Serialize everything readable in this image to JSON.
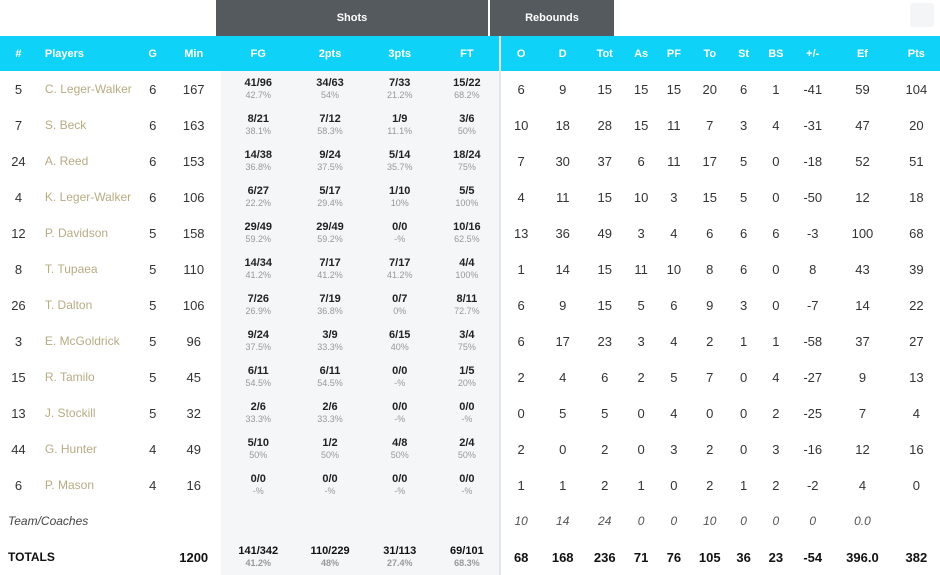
{
  "banners": {
    "shots": "Shots",
    "rebounds": "Rebounds"
  },
  "columns": [
    "#",
    "Players",
    "G",
    "Min",
    "FG",
    "2pts",
    "3pts",
    "FT",
    "O",
    "D",
    "Tot",
    "As",
    "PF",
    "To",
    "St",
    "BS",
    "+/-",
    "Ef",
    "Pts"
  ],
  "players": [
    {
      "num": "5",
      "name": "C. Leger-Walker",
      "g": "6",
      "min": "167",
      "fg": "41/96",
      "fg_pct": "42.7%",
      "p2": "34/63",
      "p2_pct": "54%",
      "p3": "7/33",
      "p3_pct": "21.2%",
      "ft": "15/22",
      "ft_pct": "68.2%",
      "o": "6",
      "d": "9",
      "tot": "15",
      "as": "15",
      "pf": "15",
      "to": "20",
      "st": "6",
      "bs": "1",
      "pm": "-41",
      "ef": "59",
      "pts": "104"
    },
    {
      "num": "7",
      "name": "S. Beck",
      "g": "6",
      "min": "163",
      "fg": "8/21",
      "fg_pct": "38.1%",
      "p2": "7/12",
      "p2_pct": "58.3%",
      "p3": "1/9",
      "p3_pct": "11.1%",
      "ft": "3/6",
      "ft_pct": "50%",
      "o": "10",
      "d": "18",
      "tot": "28",
      "as": "15",
      "pf": "11",
      "to": "7",
      "st": "3",
      "bs": "4",
      "pm": "-31",
      "ef": "47",
      "pts": "20"
    },
    {
      "num": "24",
      "name": "A. Reed",
      "g": "6",
      "min": "153",
      "fg": "14/38",
      "fg_pct": "36.8%",
      "p2": "9/24",
      "p2_pct": "37.5%",
      "p3": "5/14",
      "p3_pct": "35.7%",
      "ft": "18/24",
      "ft_pct": "75%",
      "o": "7",
      "d": "30",
      "tot": "37",
      "as": "6",
      "pf": "11",
      "to": "17",
      "st": "5",
      "bs": "0",
      "pm": "-18",
      "ef": "52",
      "pts": "51"
    },
    {
      "num": "4",
      "name": "K. Leger-Walker",
      "g": "6",
      "min": "106",
      "fg": "6/27",
      "fg_pct": "22.2%",
      "p2": "5/17",
      "p2_pct": "29.4%",
      "p3": "1/10",
      "p3_pct": "10%",
      "ft": "5/5",
      "ft_pct": "100%",
      "o": "4",
      "d": "11",
      "tot": "15",
      "as": "10",
      "pf": "3",
      "to": "15",
      "st": "5",
      "bs": "0",
      "pm": "-50",
      "ef": "12",
      "pts": "18"
    },
    {
      "num": "12",
      "name": "P. Davidson",
      "g": "5",
      "min": "158",
      "fg": "29/49",
      "fg_pct": "59.2%",
      "p2": "29/49",
      "p2_pct": "59.2%",
      "p3": "0/0",
      "p3_pct": "-%",
      "ft": "10/16",
      "ft_pct": "62.5%",
      "o": "13",
      "d": "36",
      "tot": "49",
      "as": "3",
      "pf": "4",
      "to": "6",
      "st": "6",
      "bs": "6",
      "pm": "-3",
      "ef": "100",
      "pts": "68"
    },
    {
      "num": "8",
      "name": "T. Tupaea",
      "g": "5",
      "min": "110",
      "fg": "14/34",
      "fg_pct": "41.2%",
      "p2": "7/17",
      "p2_pct": "41.2%",
      "p3": "7/17",
      "p3_pct": "41.2%",
      "ft": "4/4",
      "ft_pct": "100%",
      "o": "1",
      "d": "14",
      "tot": "15",
      "as": "11",
      "pf": "10",
      "to": "8",
      "st": "6",
      "bs": "0",
      "pm": "8",
      "ef": "43",
      "pts": "39"
    },
    {
      "num": "26",
      "name": "T. Dalton",
      "g": "5",
      "min": "106",
      "fg": "7/26",
      "fg_pct": "26.9%",
      "p2": "7/19",
      "p2_pct": "36.8%",
      "p3": "0/7",
      "p3_pct": "0%",
      "ft": "8/11",
      "ft_pct": "72.7%",
      "o": "6",
      "d": "9",
      "tot": "15",
      "as": "5",
      "pf": "6",
      "to": "9",
      "st": "3",
      "bs": "0",
      "pm": "-7",
      "ef": "14",
      "pts": "22"
    },
    {
      "num": "3",
      "name": "E. McGoldrick",
      "g": "5",
      "min": "96",
      "fg": "9/24",
      "fg_pct": "37.5%",
      "p2": "3/9",
      "p2_pct": "33.3%",
      "p3": "6/15",
      "p3_pct": "40%",
      "ft": "3/4",
      "ft_pct": "75%",
      "o": "6",
      "d": "17",
      "tot": "23",
      "as": "3",
      "pf": "4",
      "to": "2",
      "st": "1",
      "bs": "1",
      "pm": "-58",
      "ef": "37",
      "pts": "27"
    },
    {
      "num": "15",
      "name": "R. Tamilo",
      "g": "5",
      "min": "45",
      "fg": "6/11",
      "fg_pct": "54.5%",
      "p2": "6/11",
      "p2_pct": "54.5%",
      "p3": "0/0",
      "p3_pct": "-%",
      "ft": "1/5",
      "ft_pct": "20%",
      "o": "2",
      "d": "4",
      "tot": "6",
      "as": "2",
      "pf": "5",
      "to": "7",
      "st": "0",
      "bs": "4",
      "pm": "-27",
      "ef": "9",
      "pts": "13"
    },
    {
      "num": "13",
      "name": "J. Stockill",
      "g": "5",
      "min": "32",
      "fg": "2/6",
      "fg_pct": "33.3%",
      "p2": "2/6",
      "p2_pct": "33.3%",
      "p3": "0/0",
      "p3_pct": "-%",
      "ft": "0/0",
      "ft_pct": "-%",
      "o": "0",
      "d": "5",
      "tot": "5",
      "as": "0",
      "pf": "4",
      "to": "0",
      "st": "0",
      "bs": "2",
      "pm": "-25",
      "ef": "7",
      "pts": "4"
    },
    {
      "num": "44",
      "name": "G. Hunter",
      "g": "4",
      "min": "49",
      "fg": "5/10",
      "fg_pct": "50%",
      "p2": "1/2",
      "p2_pct": "50%",
      "p3": "4/8",
      "p3_pct": "50%",
      "ft": "2/4",
      "ft_pct": "50%",
      "o": "2",
      "d": "0",
      "tot": "2",
      "as": "0",
      "pf": "3",
      "to": "2",
      "st": "0",
      "bs": "3",
      "pm": "-16",
      "ef": "12",
      "pts": "16"
    },
    {
      "num": "6",
      "name": "P. Mason",
      "g": "4",
      "min": "16",
      "fg": "0/0",
      "fg_pct": "-%",
      "p2": "0/0",
      "p2_pct": "-%",
      "p3": "0/0",
      "p3_pct": "-%",
      "ft": "0/0",
      "ft_pct": "-%",
      "o": "1",
      "d": "1",
      "tot": "2",
      "as": "1",
      "pf": "0",
      "to": "2",
      "st": "1",
      "bs": "2",
      "pm": "-2",
      "ef": "4",
      "pts": "0"
    }
  ],
  "team": {
    "label": "Team/Coaches",
    "o": "10",
    "d": "14",
    "tot": "24",
    "as": "0",
    "pf": "0",
    "to": "10",
    "st": "0",
    "bs": "0",
    "pm": "0",
    "ef": "0.0"
  },
  "totals": {
    "label": "TOTALS",
    "min": "1200",
    "fg": "141/342",
    "fg_pct": "41.2%",
    "p2": "110/229",
    "p2_pct": "48%",
    "p3": "31/113",
    "p3_pct": "27.4%",
    "ft": "69/101",
    "ft_pct": "68.3%",
    "o": "68",
    "d": "168",
    "tot": "236",
    "as": "71",
    "pf": "76",
    "to": "105",
    "st": "36",
    "bs": "23",
    "pm": "-54",
    "ef": "396.0",
    "pts": "382"
  }
}
